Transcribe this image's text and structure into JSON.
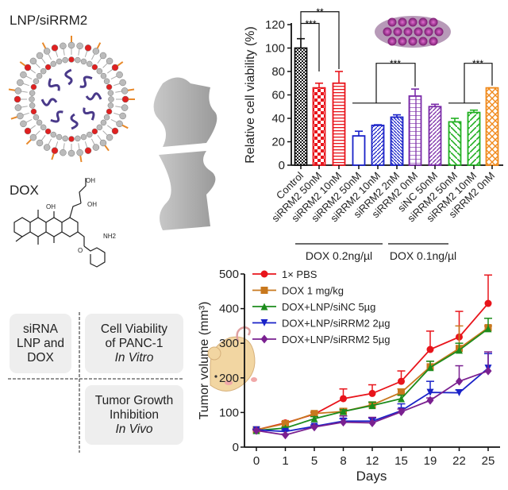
{
  "left": {
    "lnp_title": "LNP/siRRM2",
    "dox_title": "DOX",
    "molecule_labels": {
      "oh": "OH",
      "nh2": "NH2",
      "o": "O"
    },
    "boxes": [
      {
        "lines": [
          "siRNA",
          "LNP and",
          "DOX"
        ],
        "italic": ""
      },
      {
        "lines": [
          "Cell Viability",
          "of PANC-1"
        ],
        "italic": "In Vitro"
      },
      {
        "lines": [
          "Tumor Growth",
          "Inhibition"
        ],
        "italic": "In Vivo"
      }
    ]
  },
  "chart_data": [
    {
      "type": "bar",
      "ylabel": "Relative cell viability (%)",
      "ylim": [
        0,
        120
      ],
      "yticks": [
        0,
        20,
        40,
        60,
        80,
        100,
        120
      ],
      "categories": [
        "Control",
        "siRRM2 50nM",
        "siRRM2 10nM",
        "siRRM2 50nM",
        "siRRM2 10nM",
        "siRRM2 2nM",
        "siRRM2 0nM",
        "siNC 50nM",
        "siRRM2 50nM",
        "siRRM2 10nM",
        "siRRM2 0nM"
      ],
      "values": [
        100,
        66,
        70,
        25,
        34,
        41,
        59,
        50,
        37,
        45,
        66
      ],
      "error_upper": [
        108,
        70,
        80,
        29,
        34.5,
        43,
        65,
        52,
        40,
        47,
        66
      ],
      "colors": [
        "#111111",
        "#e8141b",
        "#e8141b",
        "#1a22c8",
        "#1a22c8",
        "#1a22c8",
        "#7a2aa8",
        "#7a2aa8",
        "#22b022",
        "#22b022",
        "#f08a1c"
      ],
      "patterns": [
        "checker-fine",
        "checker",
        "horizontal",
        "none",
        "diagonal",
        "diagonal-dense",
        "brick",
        "diagonal",
        "diagonal-back",
        "chevron",
        "crosshatch"
      ],
      "groups": [
        {
          "label": "DOX 0.2ng/µl",
          "from": 3,
          "to": 7
        },
        {
          "label": "DOX 0.1ng/µl",
          "from": 7,
          "to": 10
        }
      ],
      "significance": [
        {
          "label": "***",
          "a": 0,
          "b": 1
        },
        {
          "label": "**",
          "a": 0,
          "b": 2
        },
        {
          "label": "***",
          "a": "3-5",
          "b": 6
        },
        {
          "label": "***",
          "a": "8-9",
          "b": 10
        }
      ],
      "grid": false
    },
    {
      "type": "line",
      "xlabel": "Days",
      "ylabel": "Tumor volume (mm3)",
      "ylim": [
        0,
        500
      ],
      "yticks": [
        0,
        100,
        200,
        300,
        400,
        500
      ],
      "categories": [
        "0",
        "1",
        "5",
        "8",
        "12",
        "15",
        "19",
        "22",
        "25"
      ],
      "legend_position": "top-left",
      "grid": false,
      "series": [
        {
          "name": "1× PBS",
          "color": "#e8141b",
          "marker": "circle",
          "values": [
            50,
            70,
            95,
            140,
            155,
            190,
            282,
            318,
            415
          ],
          "error_upper": [
            52,
            74,
            100,
            168,
            180,
            220,
            335,
            392,
            497
          ]
        },
        {
          "name": "DOX 1 mg/kg",
          "color": "#c8781e",
          "marker": "square",
          "values": [
            50,
            68,
            97,
            103,
            122,
            158,
            232,
            285,
            345
          ],
          "error_upper": [
            52,
            72,
            102,
            112,
            130,
            168,
            248,
            350,
            350
          ]
        },
        {
          "name": "DOX+LNP/siNC 5µg",
          "color": "#1c8c1c",
          "marker": "triangle-up",
          "values": [
            48,
            55,
            82,
            103,
            120,
            140,
            230,
            280,
            342
          ],
          "error_upper": [
            50,
            58,
            88,
            108,
            130,
            150,
            248,
            300,
            372
          ]
        },
        {
          "name": "DOX+LNP/siRRM2 2µg",
          "color": "#1a22c8",
          "marker": "triangle-down",
          "values": [
            50,
            45,
            60,
            75,
            75,
            105,
            158,
            157,
            228
          ],
          "error_upper": [
            52,
            50,
            64,
            82,
            84,
            125,
            190,
            165,
            270
          ]
        },
        {
          "name": "DOX+LNP/siRRM2 5µg",
          "color": "#7a2090",
          "marker": "diamond",
          "values": [
            48,
            35,
            58,
            72,
            70,
            102,
            135,
            190,
            220
          ],
          "error_upper": [
            50,
            38,
            62,
            90,
            86,
            110,
            142,
            235,
            275
          ]
        }
      ]
    }
  ]
}
